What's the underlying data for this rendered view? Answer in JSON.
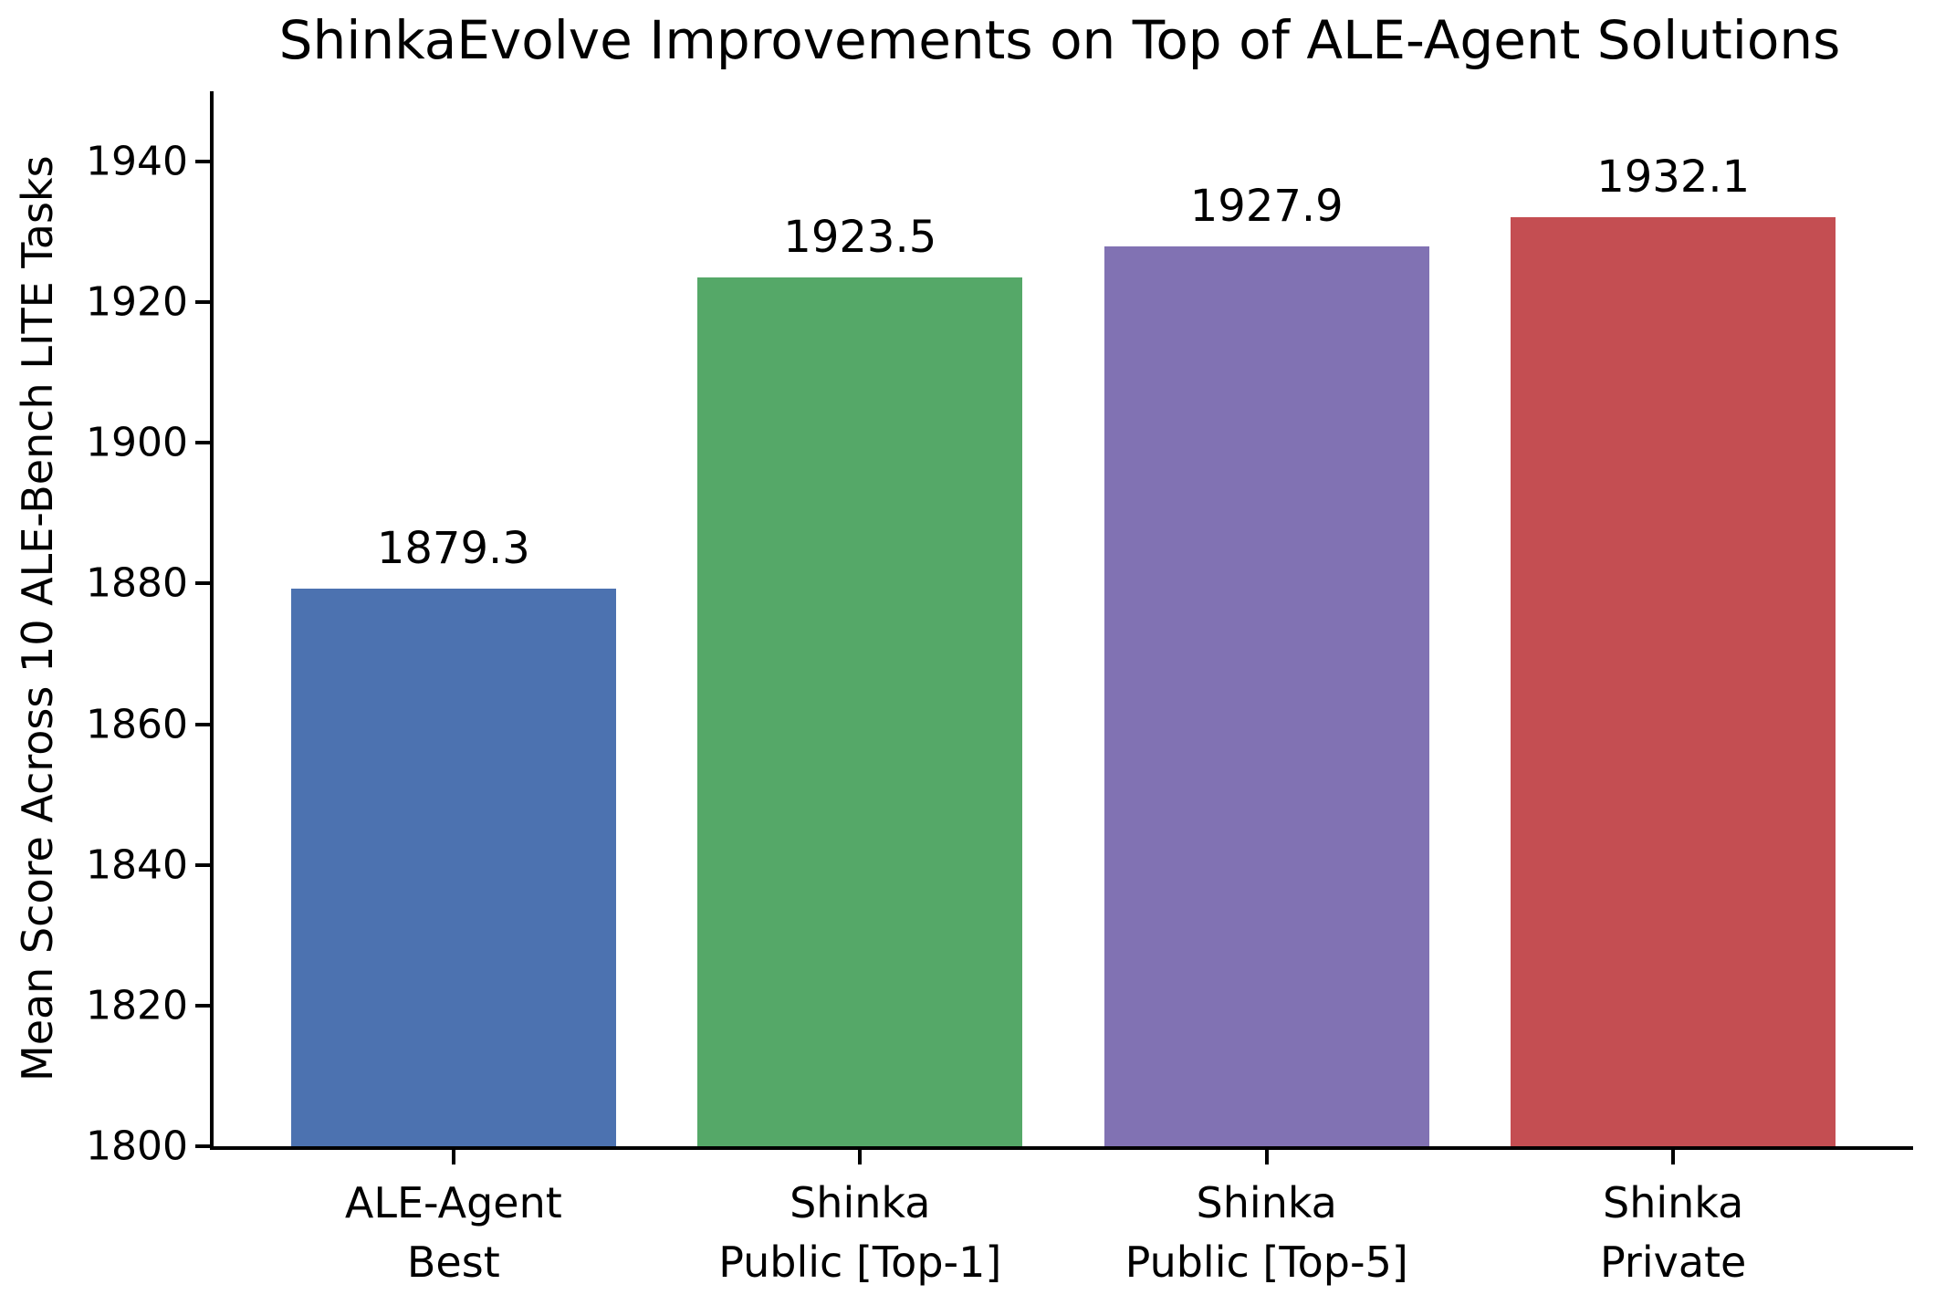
{
  "chart_data": {
    "type": "bar",
    "title": "ShinkaEvolve Improvements on Top of ALE-Agent Solutions",
    "xlabel": "",
    "ylabel": "Mean Score Across 10 ALE-Bench LITE Tasks",
    "categories": [
      "ALE-Agent\nBest",
      "Shinka\nPublic [Top-1]",
      "Shinka\nPublic [Top-5]",
      "Shinka\nPrivate"
    ],
    "values": [
      1879.3,
      1923.5,
      1927.9,
      1932.1
    ],
    "value_labels": [
      "1879.3",
      "1923.5",
      "1927.9",
      "1932.1"
    ],
    "bar_colors": [
      "#4C72B0",
      "#55A868",
      "#8172B3",
      "#C44E52"
    ],
    "ylim": [
      1800,
      1950
    ],
    "yticks": [
      1800,
      1820,
      1840,
      1860,
      1880,
      1900,
      1920,
      1940
    ],
    "xlim_categories": [
      -0.59,
      3.59
    ],
    "bar_width_fraction": 0.8,
    "grid": false,
    "legend": "none",
    "background_color": "#FFFFFF",
    "text_color": "#000000"
  }
}
